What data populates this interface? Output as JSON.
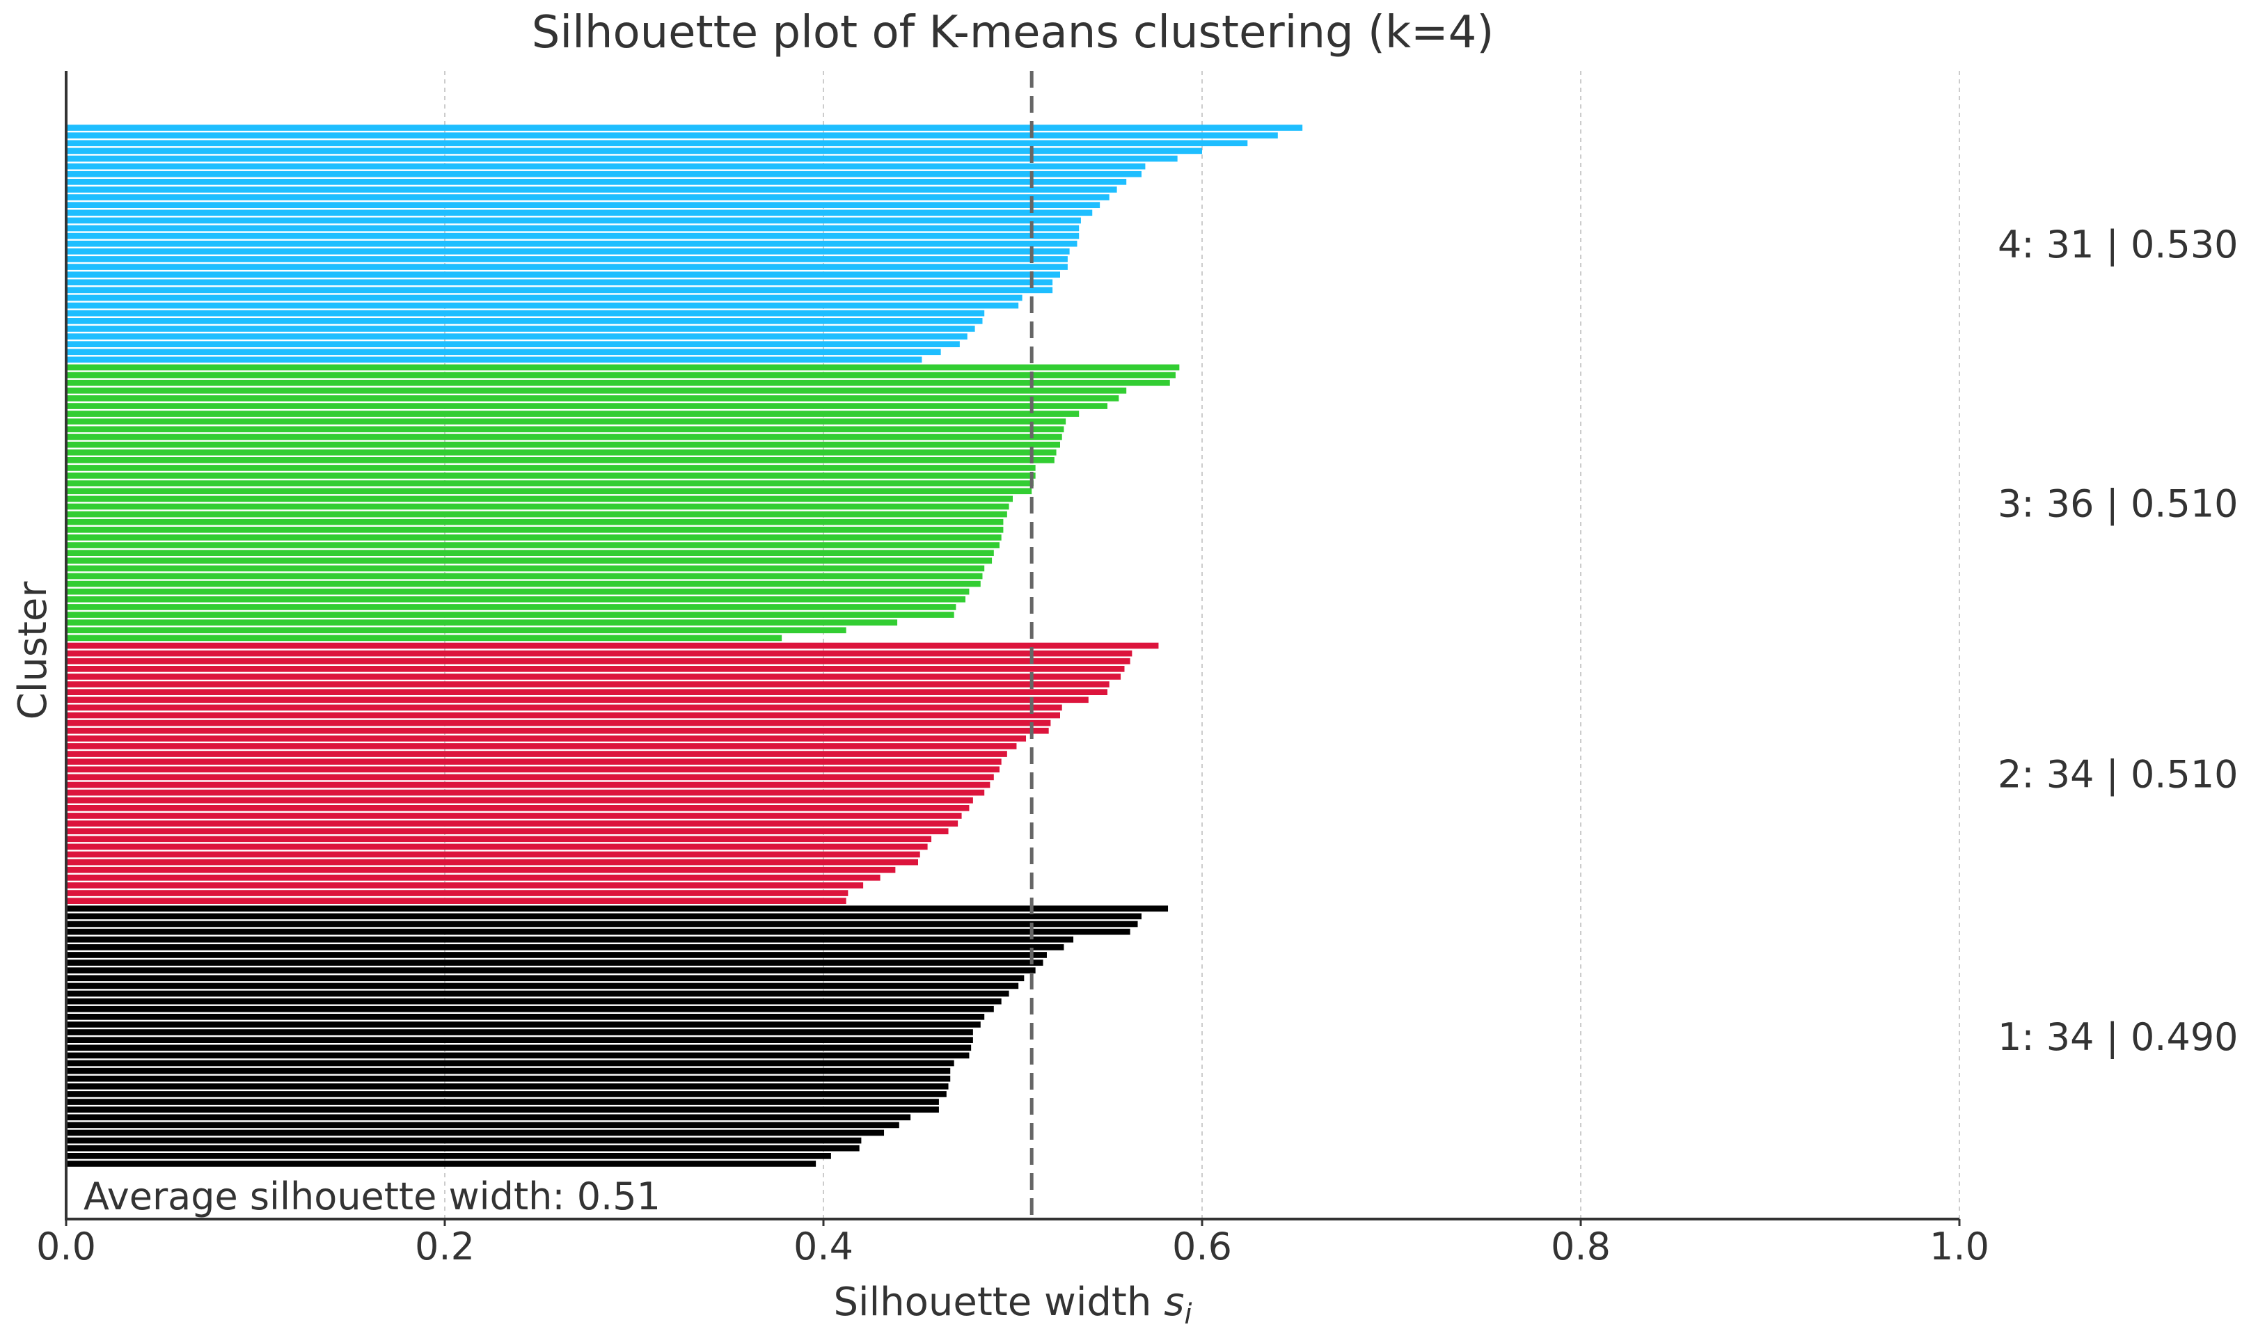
{
  "chart_data": {
    "type": "bar",
    "orientation": "horizontal",
    "title": "Silhouette plot of K-means clustering (k=4)",
    "xlabel": "Silhouette width",
    "xlabel_symbol": "s",
    "xlabel_subscript": "i",
    "ylabel": "Cluster",
    "xlim": [
      0.0,
      1.0
    ],
    "xticks": [
      "0.0",
      "0.2",
      "0.4",
      "0.6",
      "0.8",
      "1.0"
    ],
    "xtick_values": [
      0.0,
      0.2,
      0.4,
      0.6,
      0.8,
      1.0
    ],
    "grid": "vertical dashed",
    "average_silhouette": 0.51,
    "average_label": "Average silhouette width: 0.51",
    "clusters": [
      {
        "id": 1,
        "size": 34,
        "avg": 0.49,
        "color": "#000000",
        "label": "1: 34 | 0.490",
        "values": [
          0.582,
          0.568,
          0.566,
          0.562,
          0.532,
          0.527,
          0.518,
          0.516,
          0.512,
          0.506,
          0.503,
          0.498,
          0.494,
          0.49,
          0.485,
          0.483,
          0.479,
          0.479,
          0.478,
          0.477,
          0.469,
          0.467,
          0.467,
          0.466,
          0.465,
          0.461,
          0.461,
          0.446,
          0.44,
          0.432,
          0.42,
          0.419,
          0.404,
          0.396
        ]
      },
      {
        "id": 2,
        "size": 34,
        "avg": 0.51,
        "color": "#dc143c",
        "label": "2: 34 | 0.510",
        "values": [
          0.577,
          0.563,
          0.562,
          0.559,
          0.557,
          0.551,
          0.55,
          0.54,
          0.526,
          0.525,
          0.52,
          0.519,
          0.507,
          0.502,
          0.497,
          0.494,
          0.493,
          0.49,
          0.488,
          0.485,
          0.479,
          0.477,
          0.473,
          0.471,
          0.466,
          0.457,
          0.455,
          0.451,
          0.45,
          0.438,
          0.43,
          0.421,
          0.413,
          0.412
        ]
      },
      {
        "id": 3,
        "size": 36,
        "avg": 0.51,
        "color": "#32cd32",
        "label": "3: 36 | 0.510",
        "values": [
          0.588,
          0.586,
          0.583,
          0.56,
          0.556,
          0.55,
          0.535,
          0.528,
          0.527,
          0.526,
          0.525,
          0.523,
          0.522,
          0.512,
          0.512,
          0.511,
          0.51,
          0.5,
          0.498,
          0.497,
          0.495,
          0.495,
          0.494,
          0.493,
          0.49,
          0.489,
          0.485,
          0.484,
          0.483,
          0.477,
          0.475,
          0.47,
          0.469,
          0.439,
          0.412,
          0.378
        ]
      },
      {
        "id": 4,
        "size": 31,
        "avg": 0.53,
        "color": "#1ebeff",
        "label": "4: 31 | 0.530",
        "values": [
          0.653,
          0.64,
          0.624,
          0.6,
          0.587,
          0.57,
          0.568,
          0.56,
          0.555,
          0.551,
          0.546,
          0.542,
          0.536,
          0.535,
          0.535,
          0.534,
          0.53,
          0.529,
          0.529,
          0.525,
          0.521,
          0.521,
          0.505,
          0.503,
          0.485,
          0.484,
          0.48,
          0.476,
          0.472,
          0.462,
          0.452
        ]
      }
    ]
  }
}
